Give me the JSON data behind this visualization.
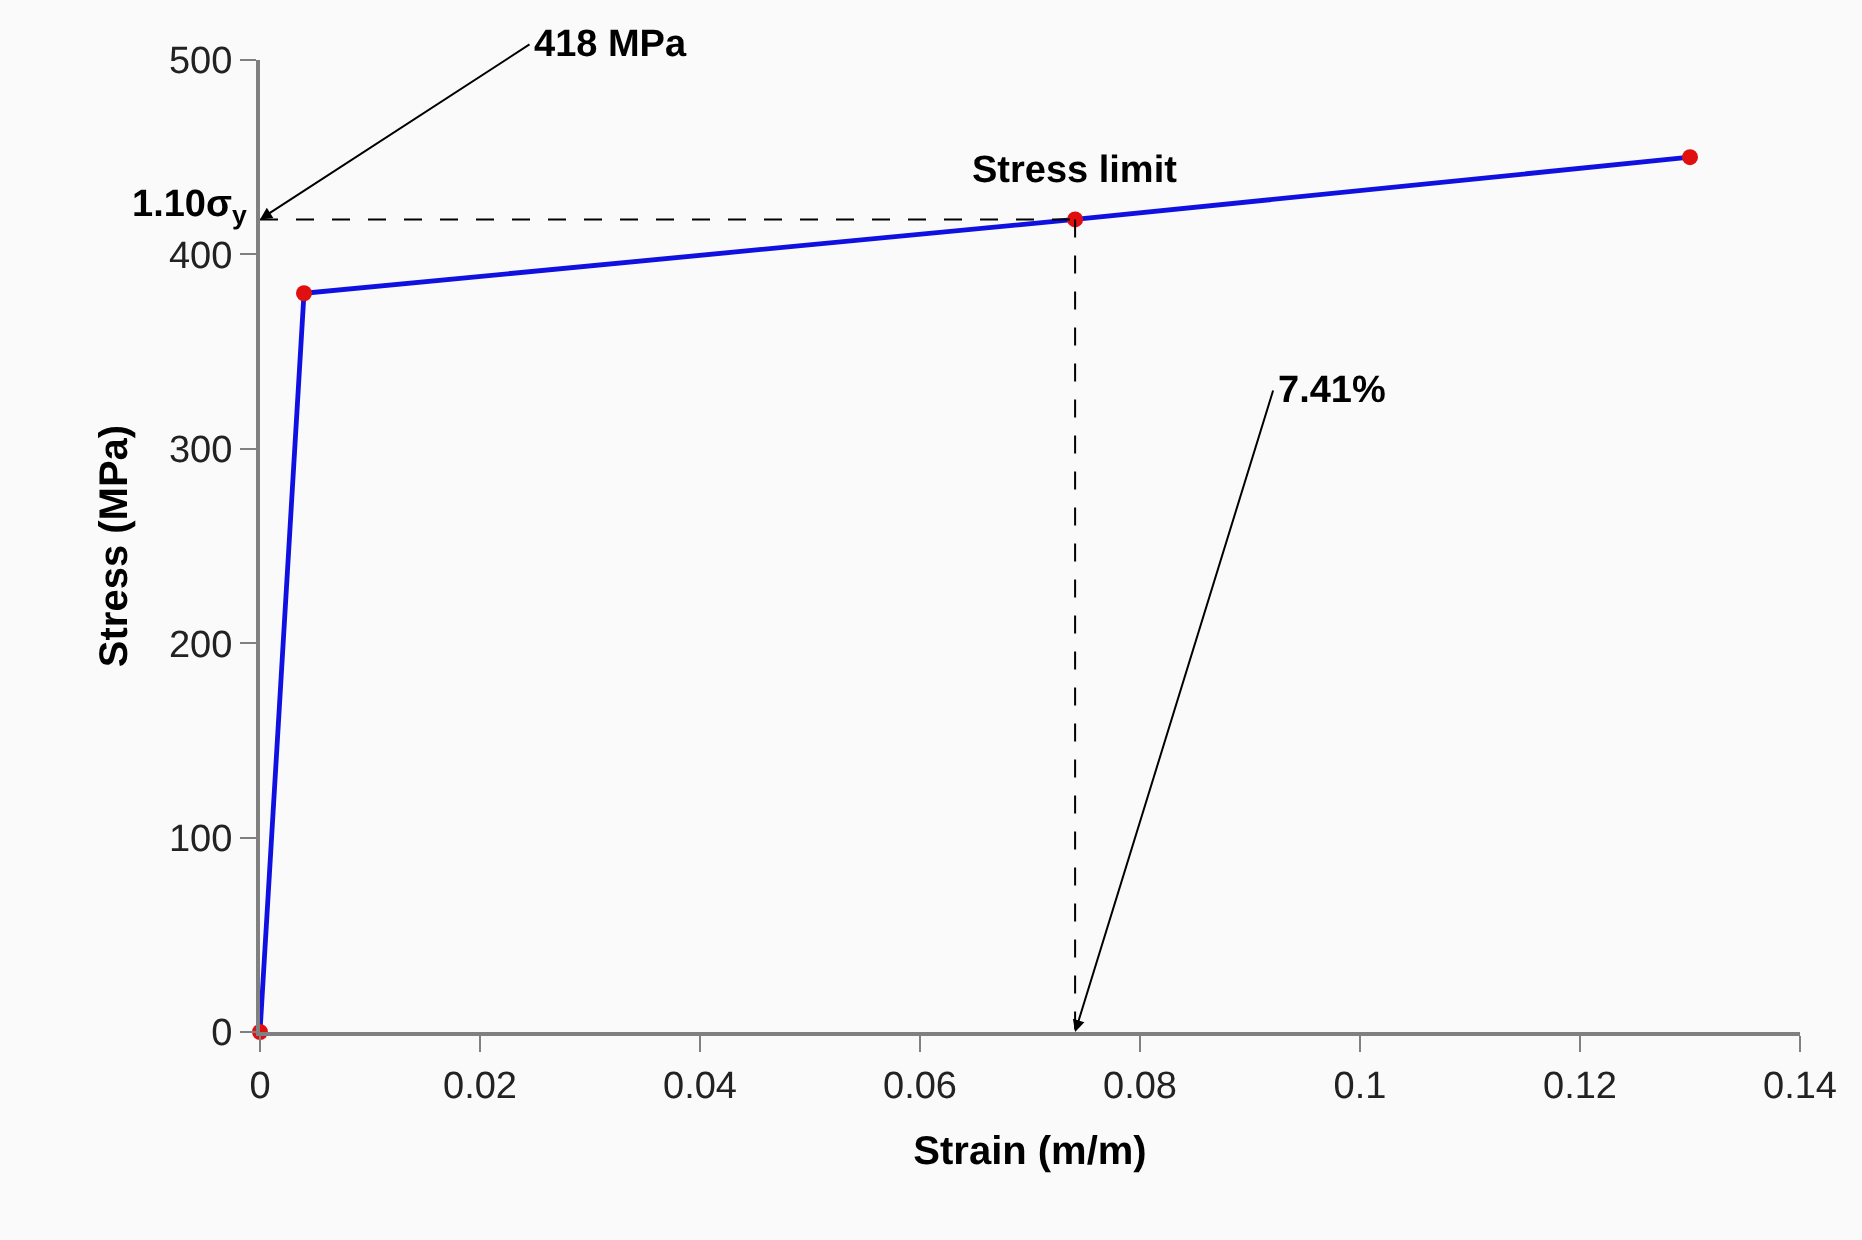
{
  "chart_data": {
    "type": "line",
    "xlabel": "Strain (m/m)",
    "ylabel": "Stress (MPa)",
    "xlim": [
      0,
      0.14
    ],
    "xticks": [
      0,
      0.02,
      0.04,
      0.06,
      0.08,
      0.1,
      0.12,
      0.14
    ],
    "ylim": [
      0,
      500
    ],
    "yticks": [
      0,
      100,
      200,
      300,
      400,
      500
    ],
    "series": [
      {
        "color": "#1010e0",
        "marker": "none",
        "line_style": "solid",
        "x": [
          0,
          0.004,
          0.0741,
          0.13
        ],
        "values": [
          0,
          380,
          418,
          450
        ]
      },
      {
        "type": "scatter",
        "color": "#e01010",
        "marker": "circle",
        "x": [
          0,
          0.004,
          0.0741,
          0.13
        ],
        "values": [
          0,
          380,
          418,
          450
        ]
      },
      {
        "color": "#000000",
        "marker": "none",
        "line_style": "dashed",
        "x": [
          0,
          0.0741
        ],
        "values": [
          418,
          418
        ]
      },
      {
        "color": "#000000",
        "marker": "none",
        "line_style": "dashed",
        "x": [
          0.0741,
          0.0741
        ],
        "values": [
          418,
          0
        ]
      }
    ],
    "annotations": [
      {
        "text": "418 MPa",
        "x": 0,
        "y": 418
      },
      "7.41%",
      {
        "text": "Stress limit",
        "x": 0.0741,
        "y": 418
      },
      "1.10σ$_{y}$"
    ]
  }
}
